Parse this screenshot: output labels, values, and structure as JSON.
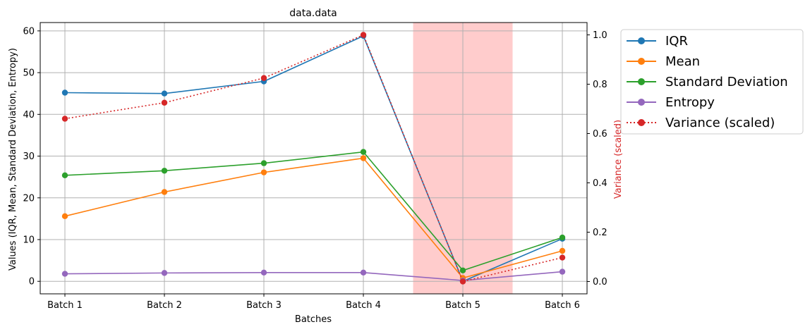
{
  "chart_data": {
    "type": "line",
    "title": "data.data",
    "xlabel": "Batches",
    "ylabel": "Values (IQR, Mean, Standard Deviation, Entropy)",
    "y2label": "Variance (scaled)",
    "categories": [
      "Batch 1",
      "Batch 2",
      "Batch 3",
      "Batch 4",
      "Batch 5",
      "Batch 6"
    ],
    "ylim": [
      -3,
      62
    ],
    "y2lim": [
      -0.05,
      1.05
    ],
    "yticks": [
      0,
      10,
      20,
      30,
      40,
      50,
      60
    ],
    "y2ticks": [
      0.0,
      0.2,
      0.4,
      0.6,
      0.8,
      1.0
    ],
    "y2tick_labels": [
      "0.0",
      "0.2",
      "0.4",
      "0.6",
      "0.8",
      "1.0"
    ],
    "grid": true,
    "legend_position": "outside-top-right",
    "highlight_span": {
      "from_index": 4.5,
      "to_index": 5.5,
      "color": "#ffcccc"
    },
    "series": [
      {
        "name": "IQR",
        "color": "#1f77b4",
        "axis": "left",
        "style": "solid",
        "values": [
          45.2,
          45.0,
          47.9,
          58.8,
          0.0,
          10.2
        ]
      },
      {
        "name": "Mean",
        "color": "#ff7f0e",
        "axis": "left",
        "style": "solid",
        "values": [
          15.6,
          21.4,
          26.1,
          29.5,
          0.8,
          7.3
        ]
      },
      {
        "name": "Standard Deviation",
        "color": "#2ca02c",
        "axis": "left",
        "style": "solid",
        "values": [
          25.4,
          26.5,
          28.3,
          31.0,
          2.6,
          10.5
        ]
      },
      {
        "name": "Entropy",
        "color": "#9467bd",
        "axis": "left",
        "style": "solid",
        "values": [
          1.8,
          2.0,
          2.1,
          2.1,
          0.2,
          2.3
        ]
      },
      {
        "name": "Variance (scaled)",
        "color": "#d62728",
        "axis": "right",
        "style": "dotted",
        "values": [
          0.66,
          0.725,
          0.825,
          1.0,
          0.0,
          0.097
        ]
      }
    ]
  }
}
